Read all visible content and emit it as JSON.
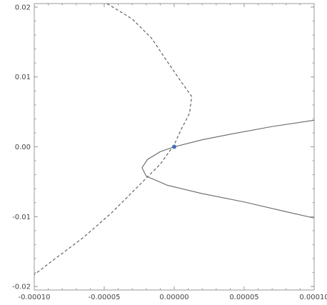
{
  "chart_data": {
    "type": "line",
    "title": "",
    "xlabel": "",
    "ylabel": "",
    "xlim": [
      -0.0001,
      0.0001
    ],
    "ylim": [
      -0.0205,
      0.0205
    ],
    "grid": false,
    "legend": "none",
    "x_tick_labels": [
      "-0.00010",
      "-0.00005",
      "0.00000",
      "0.00005",
      "0.00010"
    ],
    "x_tick_values": [
      -0.0001,
      -5e-05,
      0,
      5e-05,
      0.0001
    ],
    "y_tick_labels": [
      "-0.02",
      "-0.01",
      "0.00",
      "0.01",
      "0.02"
    ],
    "y_tick_values": [
      -0.02,
      -0.01,
      0,
      0.01,
      0.02
    ],
    "series": [
      {
        "style": "dashed",
        "color": "#555555",
        "points": [
          [
            -4.8e-05,
            0.0205
          ],
          [
            -3e-05,
            0.0183
          ],
          [
            -1.6e-05,
            0.0155
          ],
          [
            -6e-06,
            0.0125
          ],
          [
            5e-06,
            0.0093
          ],
          [
            1.25e-05,
            0.0072
          ],
          [
            1.1e-05,
            0.0048
          ],
          [
            5e-06,
            0.0025
          ],
          [
            0.0,
            0.0003
          ],
          [
            -1e-05,
            -0.0025
          ],
          [
            -2.5e-05,
            -0.0055
          ],
          [
            -4.5e-05,
            -0.0095
          ],
          [
            -6.5e-05,
            -0.013
          ],
          [
            -8.5e-05,
            -0.016
          ],
          [
            -0.0001,
            -0.0183
          ]
        ]
      },
      {
        "style": "solid",
        "color": "#666666",
        "points": [
          [
            0.0001,
            0.0038
          ],
          [
            7e-05,
            0.0029
          ],
          [
            4e-05,
            0.0018
          ],
          [
            2e-05,
            0.001
          ],
          [
            0.0,
            0.0
          ],
          [
            -1e-05,
            -0.0007
          ],
          [
            -1.9e-05,
            -0.0018
          ],
          [
            -2.3e-05,
            -0.003
          ],
          [
            -2e-05,
            -0.0042
          ],
          [
            -5e-06,
            -0.0055
          ],
          [
            2e-05,
            -0.0067
          ],
          [
            5e-05,
            -0.0079
          ],
          [
            8e-05,
            -0.0093
          ],
          [
            0.0001,
            -0.0102
          ]
        ]
      }
    ],
    "markers": [
      {
        "x": 0.0,
        "y": 0.0,
        "color": "#4a6fb5"
      }
    ]
  }
}
